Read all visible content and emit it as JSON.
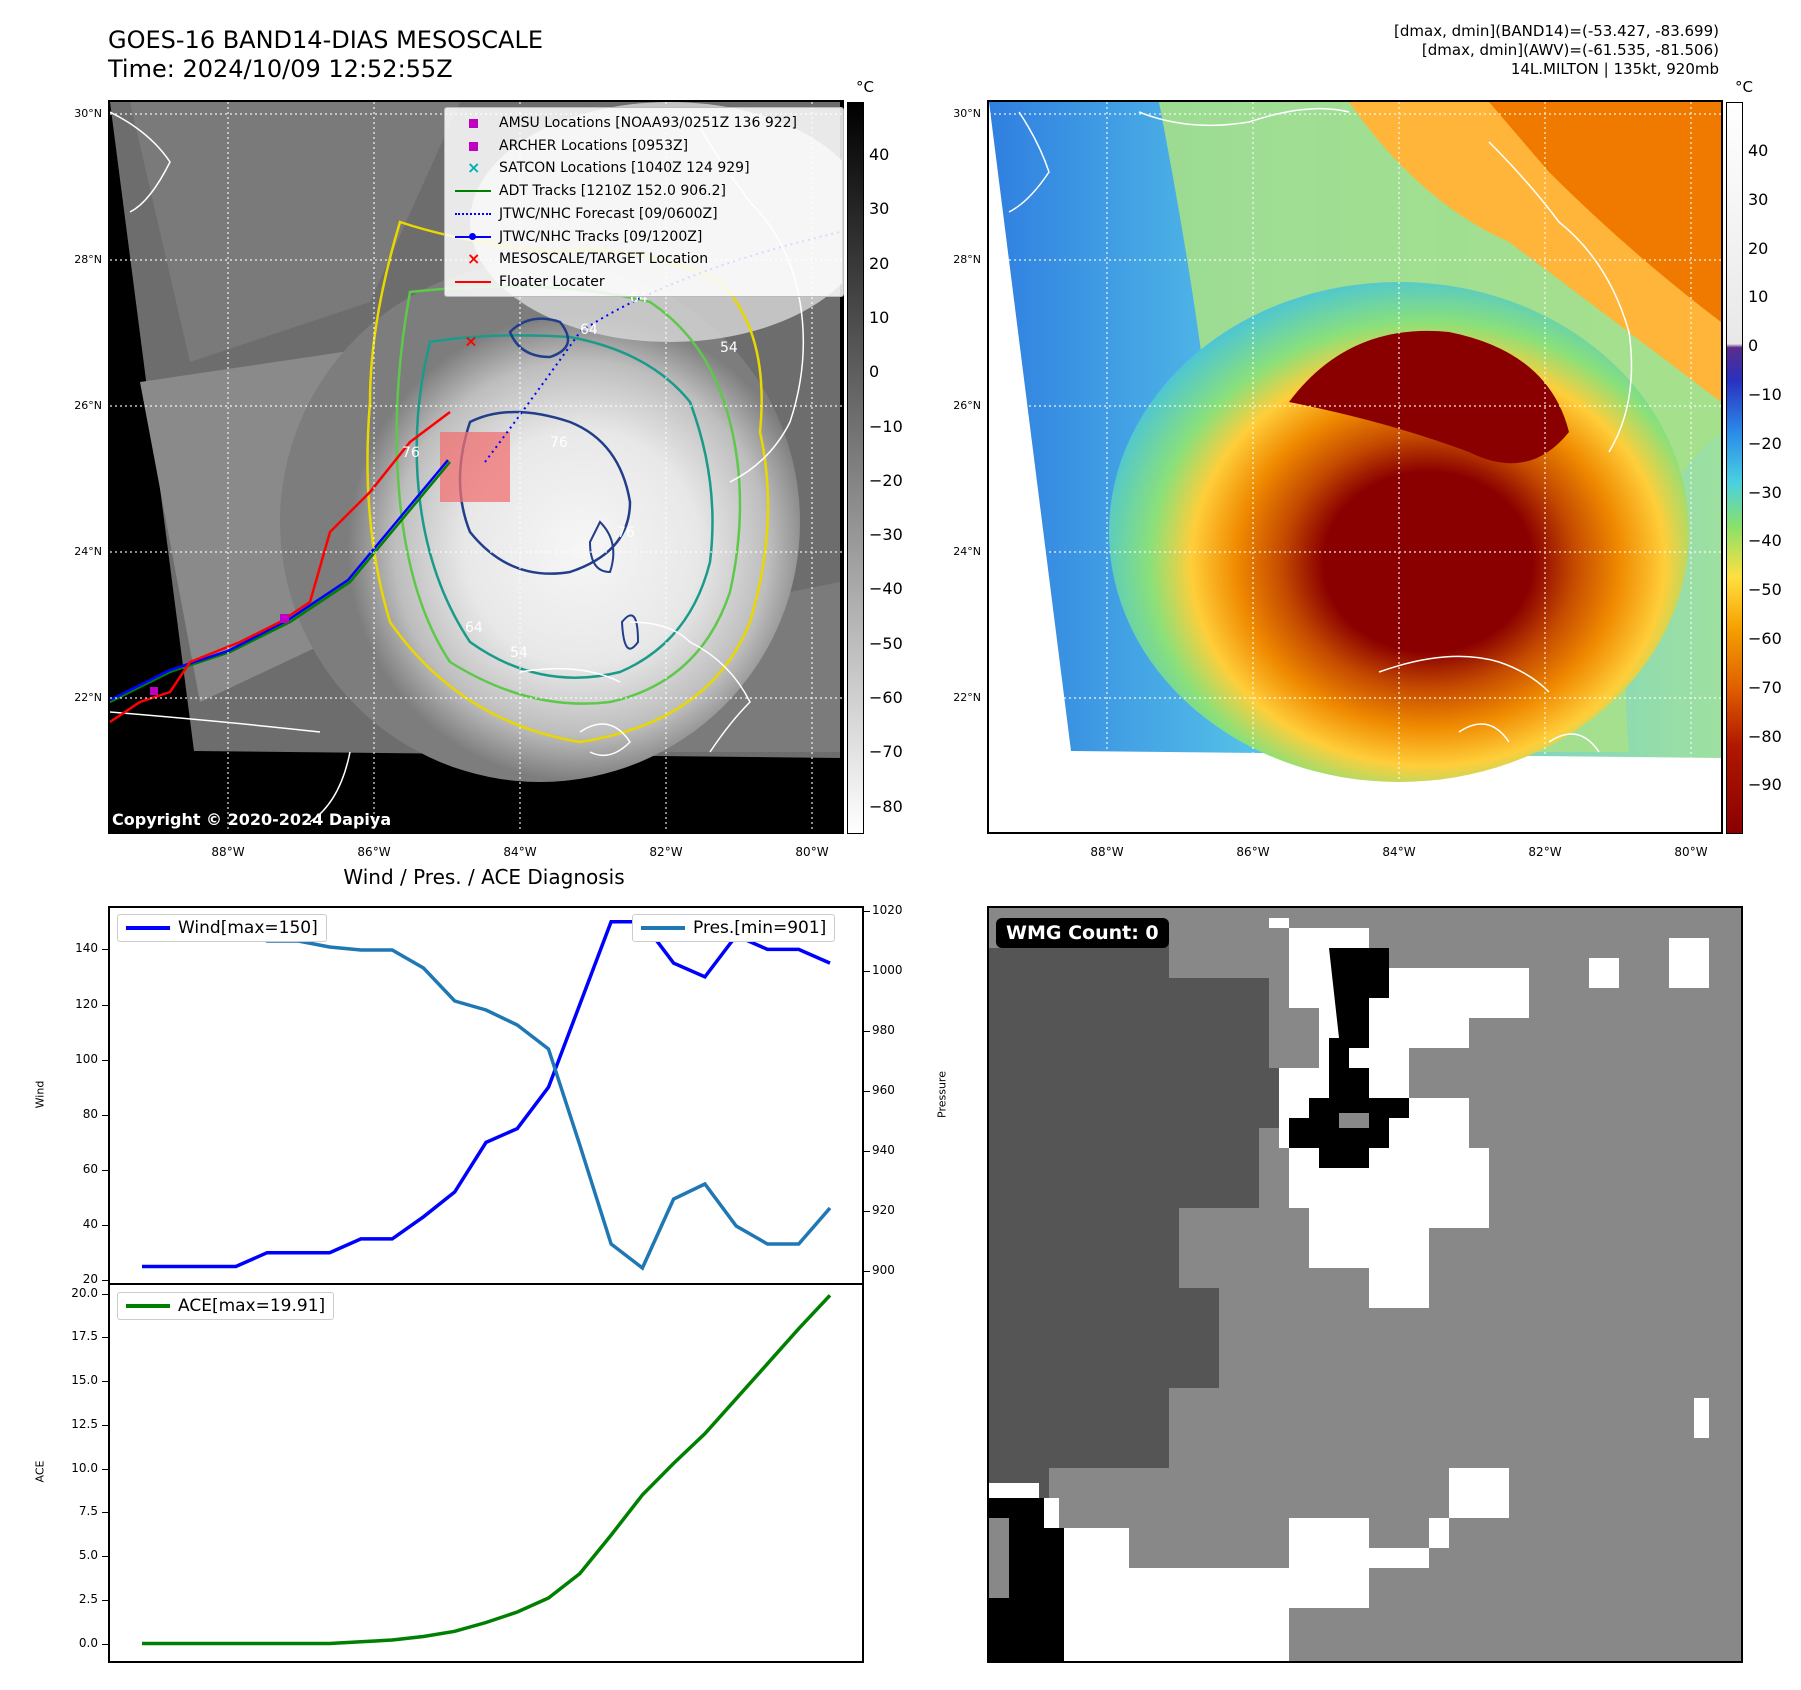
{
  "header": {
    "title_line1": "GOES-16 BAND14-DIAS MESOSCALE",
    "title_line2": "Time: 2024/10/09 12:52:55Z",
    "info_line1": "[dmax, dmin](BAND14)=(-53.427, -83.699)",
    "info_line2": "[dmax, dmin](AWV)=(-61.535, -81.506)",
    "info_line3": "14L.MILTON | 135kt, 920mb"
  },
  "map_axes": {
    "lat_labels": [
      "30°N",
      "28°N",
      "26°N",
      "24°N",
      "22°N"
    ],
    "lon_labels": [
      "88°W",
      "86°W",
      "84°W",
      "82°W",
      "80°W"
    ]
  },
  "left_map": {
    "copyright": "Copyright © 2020-2024 Dapiya",
    "contour_labels": [
      "64",
      "76",
      "76",
      "64",
      "54",
      "64",
      "54",
      "76"
    ],
    "colorbar": {
      "unit": "°C",
      "ticks": [
        "40",
        "30",
        "20",
        "10",
        "0",
        "−10",
        "−20",
        "−30",
        "−40",
        "−50",
        "−60",
        "−70",
        "−80"
      ]
    },
    "legend": [
      {
        "label": "AMSU Locations [NOAA93/0251Z 136 922]",
        "symbol": "square",
        "color": "#c000c0"
      },
      {
        "label": "ARCHER Locations [0953Z]",
        "symbol": "square",
        "color": "#c000c0"
      },
      {
        "label": "SATCON Locations [1040Z 124 929]",
        "symbol": "x",
        "color": "#00b0b0"
      },
      {
        "label": "ADT Tracks [1210Z 152.0 906.2]",
        "symbol": "line",
        "color": "#008000"
      },
      {
        "label": "JTWC/NHC Forecast [09/0600Z]",
        "symbol": "dotted",
        "color": "#0000ff"
      },
      {
        "label": "JTWC/NHC Tracks [09/1200Z]",
        "symbol": "line-dot",
        "color": "#0000ff"
      },
      {
        "label": "MESOSCALE/TARGET Location",
        "symbol": "x",
        "color": "#ff0000"
      },
      {
        "label": "Floater Locater",
        "symbol": "line",
        "color": "#ff0000"
      }
    ]
  },
  "right_map": {
    "colorbar": {
      "unit": "°C",
      "ticks": [
        "40",
        "30",
        "20",
        "10",
        "0",
        "−10",
        "−20",
        "−30",
        "−40",
        "−50",
        "−60",
        "−70",
        "−80",
        "−90"
      ]
    }
  },
  "diagnosis": {
    "title": "Wind / Pres. / ACE Diagnosis",
    "wind_label": "Wind",
    "pres_label": "Pressure",
    "ace_label": "ACE",
    "wind_legend": "Wind[max=150]",
    "pres_legend": "Pres.[min=901]",
    "ace_legend": "ACE[max=19.91]",
    "wind_ticks": [
      "140",
      "120",
      "100",
      "80",
      "60",
      "40",
      "20"
    ],
    "pres_ticks": [
      "1020",
      "1000",
      "980",
      "960",
      "940",
      "920",
      "900"
    ],
    "ace_ticks": [
      "20.0",
      "17.5",
      "15.0",
      "12.5",
      "10.0",
      "7.5",
      "5.0",
      "2.5",
      "0.0"
    ],
    "colors": {
      "wind": "#0000ff",
      "pressure": "#1f77b4",
      "ace": "#008000"
    }
  },
  "chart_data": [
    {
      "type": "line",
      "title": "Wind / Pres. / ACE Diagnosis",
      "ylabel": "Wind",
      "y2label": "Pressure",
      "ylim": [
        19,
        155
      ],
      "y2lim": [
        896,
        1021
      ],
      "series": [
        {
          "name": "Wind[max=150]",
          "axis": "left",
          "values": [
            25,
            25,
            25,
            25,
            30,
            30,
            30,
            35,
            35,
            43,
            52,
            70,
            75,
            90,
            120,
            150,
            150,
            135,
            130,
            145,
            140,
            140,
            135
          ]
        },
        {
          "name": "Pres.[min=901]",
          "axis": "right",
          "values": [
            1016,
            1016,
            1016,
            1016,
            1010,
            1010,
            1008,
            1007,
            1007,
            1001,
            990,
            987,
            982,
            974,
            942,
            909,
            901,
            924,
            929,
            915,
            909,
            909,
            921
          ]
        }
      ]
    },
    {
      "type": "line",
      "ylabel": "ACE",
      "ylim": [
        -1.0,
        20.5
      ],
      "series": [
        {
          "name": "ACE[max=19.91]",
          "values": [
            0.0,
            0.0,
            0.0,
            0.0,
            0.0,
            0.0,
            0.0,
            0.1,
            0.2,
            0.4,
            0.7,
            1.2,
            1.8,
            2.6,
            4.0,
            6.2,
            8.5,
            10.3,
            12.0,
            14.0,
            16.0,
            18.0,
            19.91
          ]
        }
      ]
    }
  ],
  "wmg_panel": {
    "count_label": "WMG Count: 0"
  }
}
